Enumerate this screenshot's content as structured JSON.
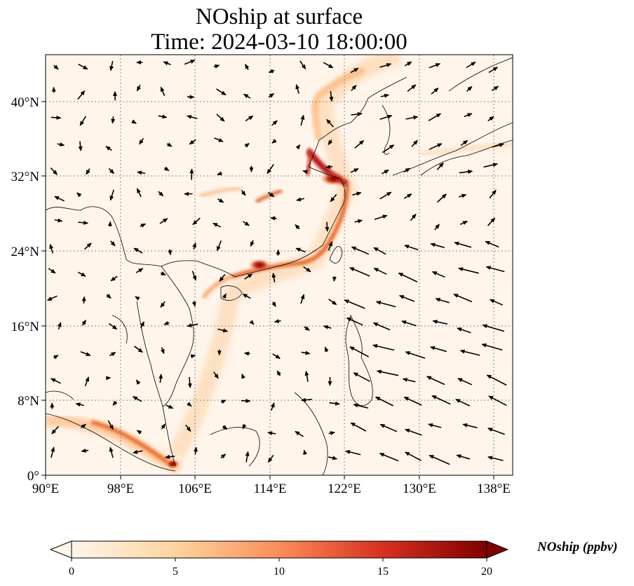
{
  "title": {
    "line1": "NOship at surface",
    "line2": "Time: 2024-03-10 18:00:00"
  },
  "map": {
    "lon_range": [
      90,
      140
    ],
    "lat_range": [
      0,
      45
    ],
    "lon_ticks": [
      "90°E",
      "98°E",
      "106°E",
      "114°E",
      "122°E",
      "130°E",
      "138°E"
    ],
    "lat_ticks": [
      "0°",
      "8°N",
      "16°N",
      "24°N",
      "32°N",
      "40°N"
    ],
    "gridlines": true,
    "background_color": "#fff5eb",
    "emission_colors": [
      "#fff5eb",
      "#fdd0a2",
      "#fd8d3c",
      "#d94801",
      "#7f2704"
    ],
    "wind_vectors": "black arrows",
    "coastlines": "black"
  },
  "colorbar": {
    "label": "NOship (ppbv)",
    "ticks": [
      "0",
      "5",
      "10",
      "15",
      "20"
    ],
    "range": [
      0,
      20
    ],
    "extend": "both",
    "cmap": "Oranges-Reds"
  }
}
